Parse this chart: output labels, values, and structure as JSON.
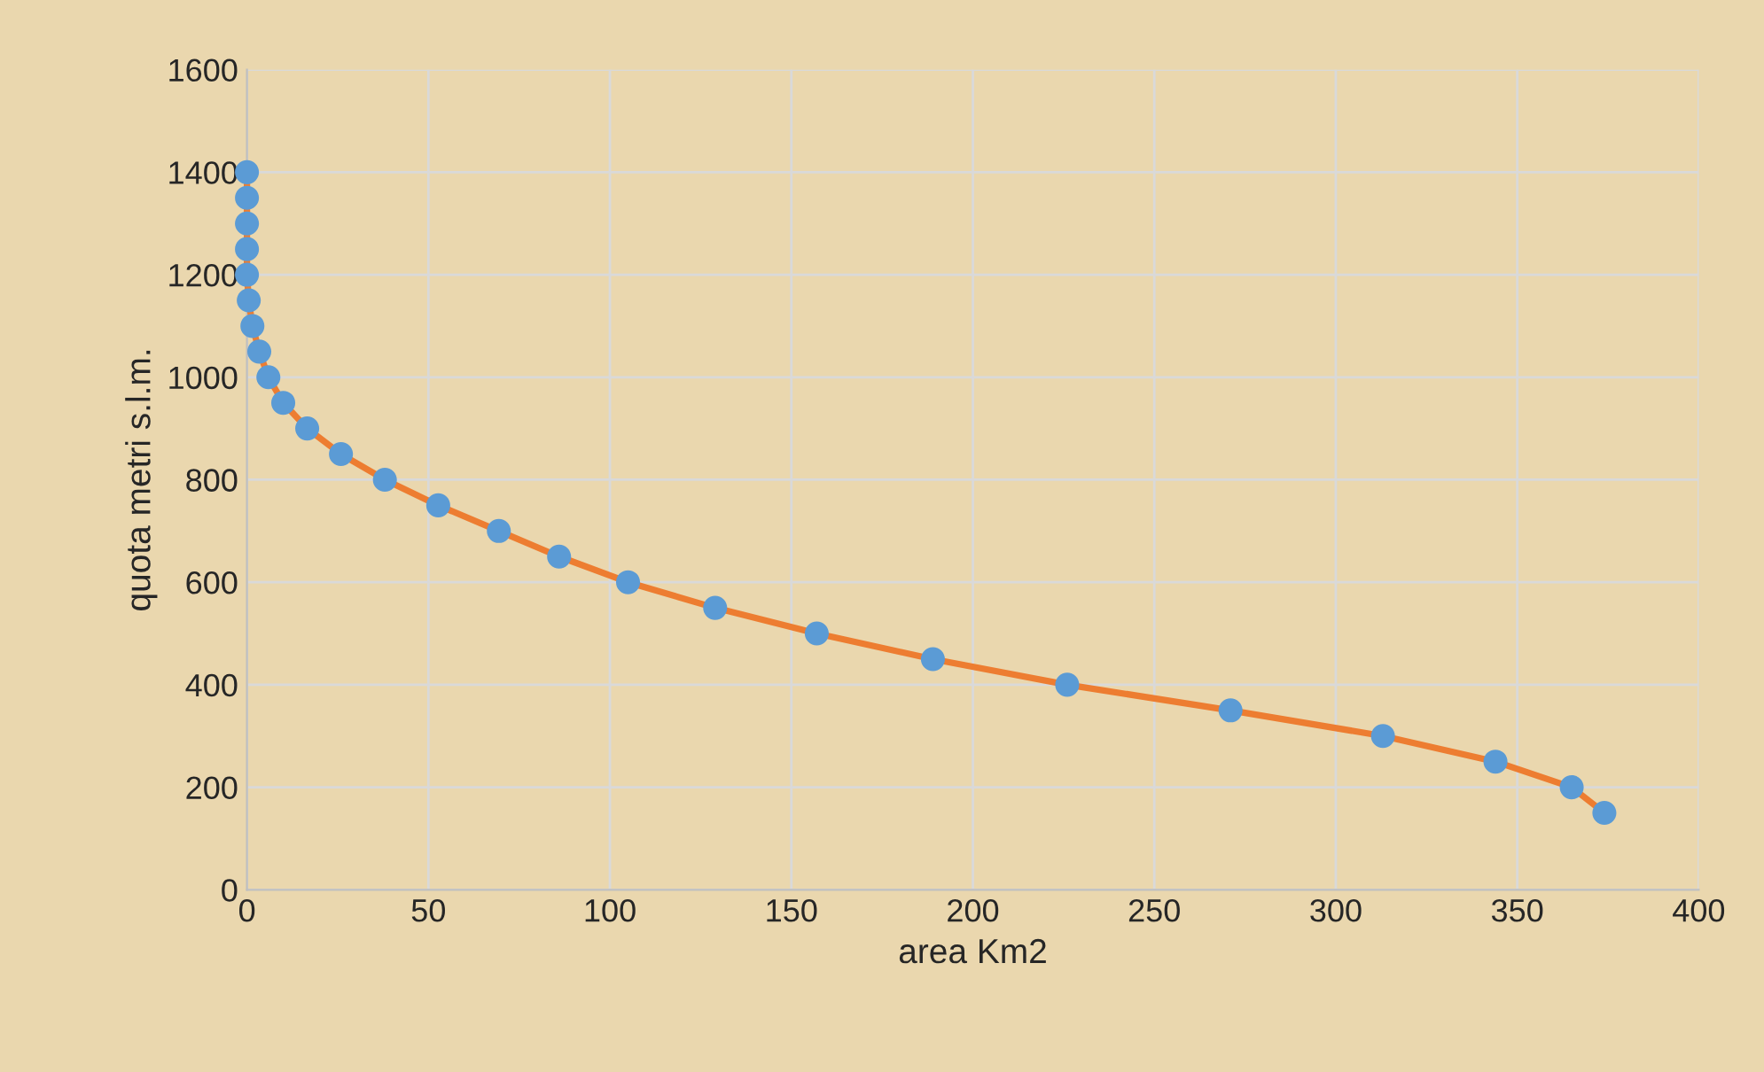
{
  "chart_data": {
    "type": "line",
    "xlabel": "area Km2",
    "ylabel": "quota metri s.l.m.",
    "xlim": [
      0,
      400
    ],
    "xticks": [
      0,
      50,
      100,
      150,
      200,
      250,
      300,
      350,
      400
    ],
    "ylim": [
      0,
      1600
    ],
    "yticks": [
      0,
      200,
      400,
      600,
      800,
      1000,
      1200,
      1400,
      1600
    ],
    "grid": true,
    "marker": "circle",
    "series": [
      {
        "color": "#ed7d31",
        "colors": [
          "#5b9bd5",
          "#5b9bd5",
          "#5b9bd5",
          "#5b9bd5",
          "#5b9bd5",
          "#5b9bd5",
          "#5b9bd5",
          "#5b9bd5",
          "#5b9bd5",
          "#5b9bd5",
          "#5b9bd5",
          "#5b9bd5",
          "#5b9bd5",
          "#5b9bd5",
          "#5b9bd5",
          "#5b9bd5",
          "#5b9bd5",
          "#5b9bd5",
          "#5b9bd5",
          "#5b9bd5",
          "#5b9bd5",
          "#5b9bd5",
          "#5b9bd5",
          "#5b9bd5",
          "#5b9bd5",
          "#5b9bd5"
        ],
        "x": [
          0,
          0,
          0,
          0,
          0,
          0.5,
          1.5,
          3.4,
          5.9,
          10,
          16.6,
          25.9,
          38,
          52.7,
          69.4,
          86,
          105,
          129,
          157,
          189,
          226,
          271,
          313,
          344,
          365,
          374
        ],
        "values": [
          1400,
          1350,
          1300,
          1250,
          1200,
          1150,
          1100,
          1050,
          1000,
          950,
          900,
          850,
          800,
          750,
          700,
          650,
          600,
          550,
          500,
          450,
          400,
          350,
          300,
          250,
          200,
          150
        ]
      }
    ]
  }
}
